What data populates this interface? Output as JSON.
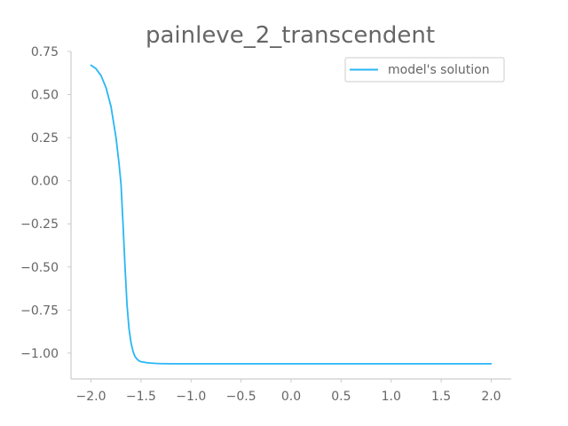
{
  "chart_data": {
    "type": "line",
    "title": "painleve_2_transcendent",
    "xlabel": "",
    "ylabel": "",
    "xlim": [
      -2.2,
      2.2
    ],
    "ylim": [
      -1.15,
      0.75
    ],
    "xticks": [
      -2.0,
      -1.5,
      -1.0,
      -0.5,
      0.0,
      0.5,
      1.0,
      1.5,
      2.0
    ],
    "xtick_labels": [
      "−2.0",
      "−1.5",
      "−1.0",
      "−0.5",
      "0.0",
      "0.5",
      "1.0",
      "1.5",
      "2.0"
    ],
    "yticks": [
      0.75,
      0.5,
      0.25,
      0.0,
      -0.25,
      -0.5,
      -0.75,
      -1.0
    ],
    "ytick_labels": [
      "0.75",
      "0.50",
      "0.25",
      "0.00",
      "−0.25",
      "−0.50",
      "−0.75",
      "−1.00"
    ],
    "grid": false,
    "legend_position": "top-right",
    "series": [
      {
        "name": "model's solution",
        "color": "#29b6f6",
        "x": [
          -2.0,
          -1.95,
          -1.9,
          -1.85,
          -1.8,
          -1.75,
          -1.72,
          -1.7,
          -1.68,
          -1.66,
          -1.64,
          -1.62,
          -1.6,
          -1.58,
          -1.56,
          -1.54,
          -1.52,
          -1.5,
          -1.45,
          -1.4,
          -1.35,
          -1.3,
          -1.2,
          -1.1,
          -1.0,
          -0.8,
          -0.5,
          0.0,
          0.5,
          1.0,
          1.5,
          2.0
        ],
        "y": [
          0.67,
          0.65,
          0.61,
          0.54,
          0.43,
          0.25,
          0.1,
          -0.02,
          -0.25,
          -0.5,
          -0.72,
          -0.86,
          -0.94,
          -0.99,
          -1.02,
          -1.035,
          -1.045,
          -1.05,
          -1.055,
          -1.058,
          -1.06,
          -1.061,
          -1.062,
          -1.062,
          -1.062,
          -1.062,
          -1.062,
          -1.062,
          -1.062,
          -1.062,
          -1.062,
          -1.062
        ]
      }
    ]
  }
}
